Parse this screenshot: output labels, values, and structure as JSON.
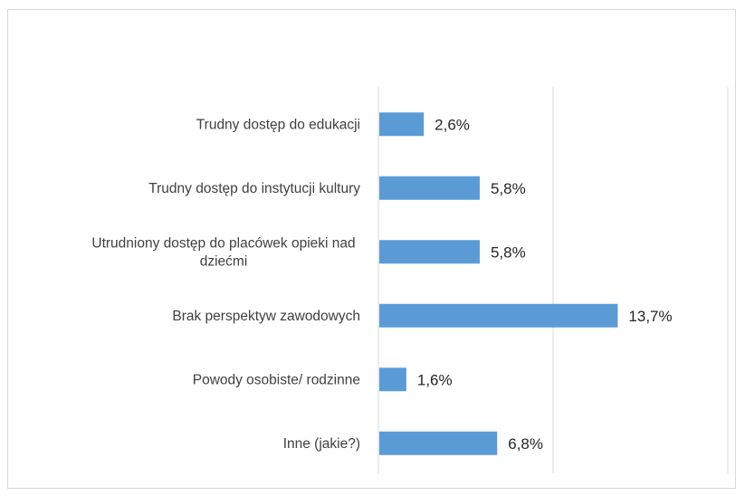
{
  "chart_data": {
    "type": "bar",
    "orientation": "horizontal",
    "categories": [
      [
        "Trudny dostęp do edukacji"
      ],
      [
        "Trudny dostęp do instytucji kultury"
      ],
      [
        "Utrudniony dostęp do placówek opieki nad",
        "dziećmi"
      ],
      [
        "Brak perspektyw zawodowych"
      ],
      [
        "Powody osobiste/ rodzinne"
      ],
      [
        "Inne (jakie?)"
      ]
    ],
    "values": [
      2.6,
      5.8,
      5.8,
      13.7,
      1.6,
      6.8
    ],
    "value_labels": [
      "2,6%",
      "5,8%",
      "5,8%",
      "13,7%",
      "1,6%",
      "6,8%"
    ],
    "xlim": [
      0,
      20
    ],
    "x_gridlines": [
      0,
      10,
      20
    ],
    "bar_color": "#5b9bd5",
    "grid_color": "#d9d9d9",
    "title": "",
    "xlabel": "",
    "ylabel": ""
  }
}
